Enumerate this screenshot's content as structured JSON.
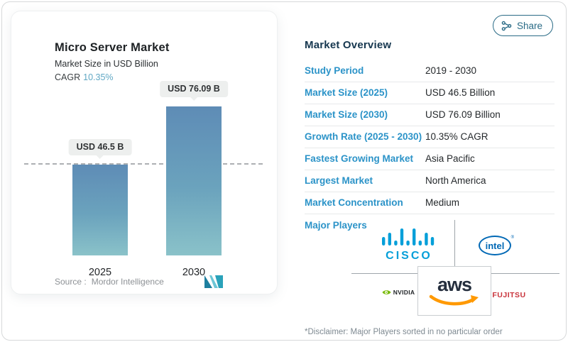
{
  "share": {
    "label": "Share"
  },
  "chart": {
    "title": "Micro Server Market",
    "subtitle": "Market Size in USD Billion",
    "cagr_label": "CAGR",
    "cagr_value": "10.35%",
    "source_label": "Source :",
    "source_name": "Mordor Intelligence"
  },
  "chart_data": {
    "type": "bar",
    "title": "Micro Server Market",
    "ylabel": "Market Size in USD Billion",
    "categories": [
      "2025",
      "2030"
    ],
    "values": [
      46.5,
      76.09
    ],
    "bar_labels": [
      "USD 46.5 B",
      "USD 76.09 B"
    ],
    "ylim": [
      0,
      80
    ],
    "grid": false,
    "legend": "none",
    "cagr_percent": 10.35,
    "reference_line": {
      "value": 46.5,
      "style": "dashed"
    },
    "colors": {
      "bar_gradient_top": "#5e8cb6",
      "bar_gradient_bottom": "#8ac2c9",
      "dashed_line": "#adb0b3"
    }
  },
  "overview": {
    "title": "Market Overview",
    "rows": [
      {
        "label": "Study Period",
        "value": "2019 - 2030"
      },
      {
        "label": "Market Size (2025)",
        "value": "USD 46.5 Billion"
      },
      {
        "label": "Market Size (2030)",
        "value": "USD 76.09 Billion"
      },
      {
        "label": "Growth Rate (2025 - 2030)",
        "value": "10.35% CAGR"
      },
      {
        "label": "Fastest Growing Market",
        "value": "Asia Pacific"
      },
      {
        "label": "Largest Market",
        "value": "North America"
      },
      {
        "label": "Market Concentration",
        "value": "Medium"
      }
    ],
    "players_label": "Major Players",
    "players": [
      {
        "name": "Cisco",
        "wordmark": "CISCO",
        "color": "#049fd9"
      },
      {
        "name": "Intel",
        "wordmark": "intel",
        "reg_mark": "®",
        "color": "#0068b5"
      },
      {
        "name": "AWS",
        "wordmark": "aws",
        "color": "#252f3e",
        "accent": "#ff9900"
      },
      {
        "name": "NVIDIA",
        "wordmark": "NVIDIA",
        "color": "#76b900"
      },
      {
        "name": "Fujitsu",
        "wordmark": "FUJITSU",
        "color": "#c8333b"
      }
    ],
    "disclaimer": "*Disclaimer: Major Players sorted in no particular order"
  },
  "icons": {
    "share": "share-nodes-icon",
    "mordor_logo": "mordor-intelligence-m-mark"
  },
  "colors": {
    "accent_blue": "#2b93c8",
    "heading_navy": "#16374f",
    "cagr_teal": "#61a8c4",
    "share_teal": "#2a6b86",
    "value_text": "#24282b",
    "muted_gray": "#8d9195"
  }
}
